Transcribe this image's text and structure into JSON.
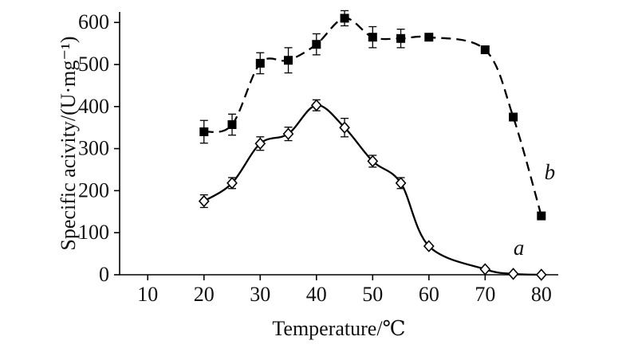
{
  "chart_data": {
    "type": "line",
    "title": "",
    "xlabel": "Temperature/℃",
    "ylabel": "Specific acivity/(U·mg⁻¹)",
    "xlim": [
      5,
      83
    ],
    "ylim": [
      0,
      625
    ],
    "xticks": [
      10,
      20,
      30,
      40,
      50,
      60,
      70,
      80
    ],
    "yticks": [
      0,
      100,
      200,
      300,
      400,
      500,
      600
    ],
    "grid": false,
    "legend": "inline-annotations",
    "axis_color": "#000000",
    "x": [
      20,
      25,
      30,
      35,
      40,
      45,
      50,
      55,
      60,
      70,
      75,
      80
    ],
    "series": [
      {
        "name": "a",
        "label": "a",
        "marker": "open-diamond",
        "line_style": "solid",
        "color": "#000000",
        "values": [
          175,
          218,
          312,
          335,
          403,
          350,
          270,
          218,
          68,
          13,
          2,
          0
        ],
        "errors": [
          15,
          13,
          16,
          16,
          13,
          22,
          14,
          13,
          0,
          0,
          0,
          0
        ]
      },
      {
        "name": "b",
        "label": "b",
        "marker": "filled-square",
        "line_style": "dashed",
        "color": "#000000",
        "values": [
          340,
          357,
          503,
          510,
          548,
          610,
          565,
          562,
          565,
          535,
          375,
          140
        ],
        "errors": [
          27,
          25,
          25,
          30,
          25,
          18,
          25,
          22,
          0,
          0,
          0,
          0
        ]
      }
    ],
    "annotations": [
      {
        "text": "a",
        "x": 76,
        "y": 47
      },
      {
        "text": "b",
        "x": 81.5,
        "y": 227
      }
    ]
  }
}
